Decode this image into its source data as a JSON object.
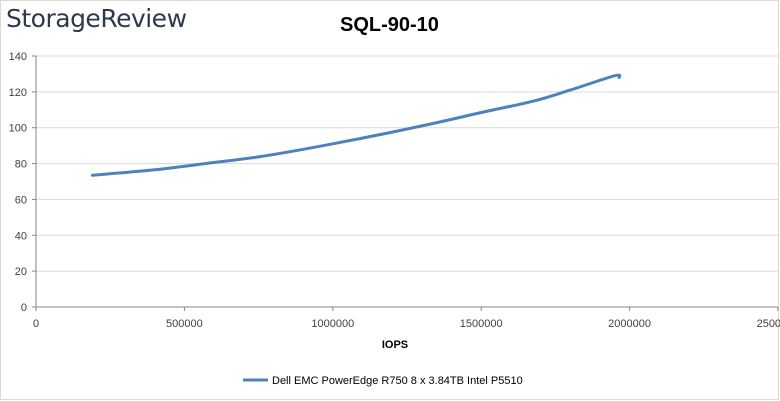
{
  "brand": {
    "logo_text": "StorageReview"
  },
  "chart_data": {
    "type": "line",
    "title": "SQL-90-10",
    "xlabel": "IOPS",
    "ylabel": "",
    "xlim": [
      0,
      2500000
    ],
    "ylim": [
      0,
      140
    ],
    "x_ticks": [
      0,
      500000,
      1000000,
      1500000,
      2000000,
      2500000
    ],
    "x_tick_labels": [
      "0",
      "500000",
      "1000000",
      "1500000",
      "2000000",
      "2500000"
    ],
    "y_ticks": [
      0,
      20,
      40,
      60,
      80,
      100,
      120,
      140
    ],
    "y_tick_labels": [
      "0",
      "20",
      "40",
      "60",
      "80",
      "100",
      "120",
      "140"
    ],
    "grid": true,
    "legend_position": "bottom",
    "series": [
      {
        "name": "Dell EMC PowerEdge R750 8 x 3.84TB Intel P5510",
        "color": "#4f81bd",
        "x": [
          190000,
          400000,
          570000,
          760000,
          1000000,
          1300000,
          1500000,
          1680000,
          1800000,
          1950000,
          1965000
        ],
        "y": [
          73.5,
          76.5,
          80,
          84,
          91,
          101,
          108.5,
          115,
          121,
          129,
          128
        ]
      }
    ]
  }
}
